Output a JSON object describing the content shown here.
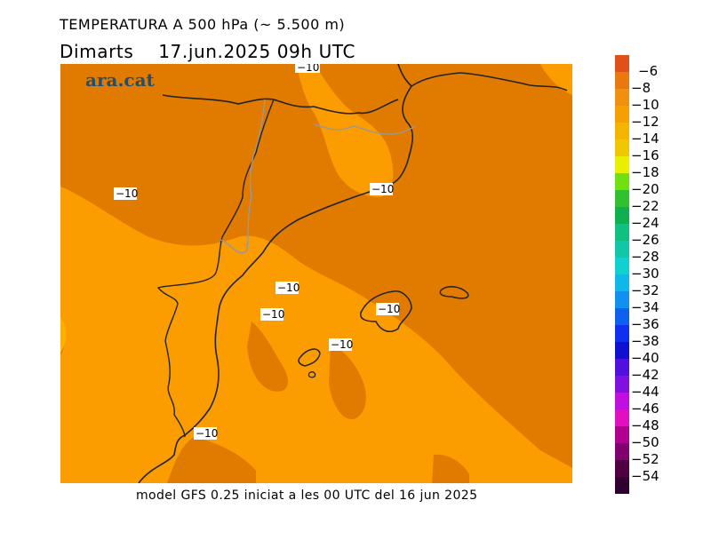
{
  "header": {
    "title": "TEMPERATURA A 500 hPa (~ 5.500 m)",
    "subtitle": "Dimarts    17.jun.2025 09h UTC"
  },
  "brand": "ara.cat",
  "footer": "model GFS 0.25 iniciat a les 00 UTC del 16 jun 2025",
  "contour_labels": [
    "−10",
    "−10",
    "−10",
    "−10",
    "−10",
    "−10",
    "−10",
    "−10"
  ],
  "legend": {
    "labels": [
      "−6",
      "−8",
      "−10",
      "−12",
      "−14",
      "−16",
      "−18",
      "−20",
      "−22",
      "−24",
      "−26",
      "−28",
      "−30",
      "−32",
      "−34",
      "−36",
      "−38",
      "−40",
      "−42",
      "−44",
      "−46",
      "−48",
      "−50",
      "−52",
      "−54"
    ],
    "colors": [
      "#e0501a",
      "#e87810",
      "#f09010",
      "#f4a000",
      "#f4b400",
      "#f0c800",
      "#e8f000",
      "#70e010",
      "#30c030",
      "#10b050",
      "#10c080",
      "#10c8a8",
      "#10d0d0",
      "#10b8e8",
      "#1090f0",
      "#1060f0",
      "#1030f0",
      "#1010d0",
      "#5010e0",
      "#8010e0",
      "#c010e0",
      "#e010c0",
      "#b00090",
      "#800070",
      "#500040",
      "#300030"
    ]
  },
  "colors": {
    "field_dark": "#e07b00",
    "field_light": "#fb9c00",
    "coast": "#222222",
    "border": "#999999"
  }
}
